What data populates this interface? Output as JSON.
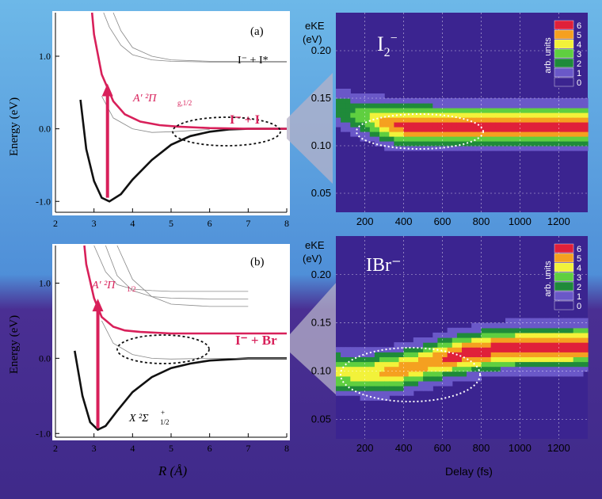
{
  "colors": {
    "background_top": "#5aa9e6",
    "background_bottom": "#3f2a8a",
    "panel_bg": "#ffffff",
    "curve_red": "#d8205a",
    "curve_black": "#111111",
    "heatmap_bg": "#3b2490",
    "scale": [
      "#3b2490",
      "#6a58c8",
      "#1f8a3a",
      "#5fcf40",
      "#f2f23a",
      "#f5a020",
      "#e0203a"
    ]
  },
  "chart_data": [
    {
      "id": "a",
      "type": "line",
      "panel_label": "(a)",
      "ylabel": "Energy (eV)",
      "xlabel": "",
      "xlim": [
        2,
        8
      ],
      "ylim": [
        -1.15,
        1.6
      ],
      "x_ticks": [
        "2",
        "3",
        "4",
        "5",
        "6",
        "7",
        "8"
      ],
      "y_ticks": [
        "-1.0",
        "0.0",
        "1.0"
      ],
      "annotations": [
        "I⁻ + I*",
        "A′ ²Π",
        "g,1/2",
        "I⁻ + I"
      ],
      "series": [
        {
          "role": "ground",
          "color": "#111111",
          "x": [
            2.65,
            2.8,
            3.0,
            3.2,
            3.4,
            3.7,
            4.0,
            4.5,
            5.0,
            5.5,
            6.0,
            6.5,
            7.0,
            7.5,
            8.0
          ],
          "y": [
            0.4,
            -0.28,
            -0.72,
            -0.95,
            -1.0,
            -0.9,
            -0.7,
            -0.43,
            -0.22,
            -0.1,
            -0.04,
            -0.01,
            0.0,
            0.0,
            0.0
          ]
        },
        {
          "role": "excited",
          "color": "#d8205a",
          "x": [
            2.95,
            3.0,
            3.2,
            3.5,
            3.8,
            4.2,
            4.7,
            5.2,
            6.0,
            7.0,
            8.0
          ],
          "y": [
            1.6,
            1.3,
            0.75,
            0.38,
            0.2,
            0.1,
            0.05,
            0.03,
            0.01,
            0.0,
            0.0
          ]
        },
        {
          "role": "upper",
          "color": "#888888",
          "x": [
            3.25,
            3.4,
            3.7,
            4.0,
            4.5,
            5.0,
            6.0,
            7.0,
            8.0
          ],
          "y": [
            1.6,
            1.4,
            1.15,
            1.02,
            0.95,
            0.93,
            0.92,
            0.92,
            0.92
          ]
        },
        {
          "role": "upper",
          "color": "#888888",
          "x": [
            3.5,
            3.7,
            4.0,
            4.5,
            5.0,
            6.0,
            7.0,
            8.0
          ],
          "y": [
            1.6,
            1.35,
            1.12,
            1.0,
            0.95,
            0.93,
            0.93,
            0.93
          ]
        },
        {
          "role": "upper",
          "color": "#888888",
          "x": [
            3.2,
            3.5,
            4.0,
            4.5,
            5.0,
            6.0
          ],
          "y": [
            0.45,
            0.15,
            0.0,
            -0.05,
            -0.04,
            -0.01
          ]
        }
      ],
      "arrow": {
        "x": 3.35,
        "y_from": -0.95,
        "y_to": 0.58
      }
    },
    {
      "id": "b",
      "type": "line",
      "panel_label": "(b)",
      "ylabel": "Energy (eV)",
      "xlabel": "R (Å)",
      "xlim": [
        2,
        8
      ],
      "ylim": [
        -1.05,
        1.5
      ],
      "x_ticks": [
        "2",
        "3",
        "4",
        "5",
        "6",
        "7",
        "8"
      ],
      "y_ticks": [
        "-1.0",
        "0.0",
        "1.0"
      ],
      "annotations": [
        "A′ ²Π",
        "1/2",
        "I⁻ + Br",
        "X ²Σ",
        "1/2",
        "+"
      ],
      "series": [
        {
          "role": "ground",
          "color": "#111111",
          "x": [
            2.5,
            2.7,
            2.9,
            3.1,
            3.3,
            3.6,
            4.0,
            4.5,
            5.0,
            5.5,
            6.0,
            7.0,
            8.0
          ],
          "y": [
            0.1,
            -0.5,
            -0.85,
            -0.95,
            -0.9,
            -0.7,
            -0.45,
            -0.25,
            -0.13,
            -0.07,
            -0.03,
            0.0,
            0.0
          ]
        },
        {
          "role": "excited",
          "color": "#d8205a",
          "x": [
            2.75,
            2.8,
            3.0,
            3.2,
            3.5,
            3.8,
            4.2,
            5.0,
            6.0,
            7.0,
            8.0
          ],
          "y": [
            1.5,
            1.25,
            0.8,
            0.55,
            0.42,
            0.37,
            0.35,
            0.33,
            0.33,
            0.33,
            0.33
          ]
        },
        {
          "role": "upper",
          "color": "#888888",
          "x": [
            3.0,
            3.3,
            3.6,
            4.0,
            4.5,
            5.0,
            6.0,
            7.0
          ],
          "y": [
            1.5,
            1.15,
            0.98,
            0.92,
            0.9,
            0.89,
            0.89,
            0.89
          ]
        },
        {
          "role": "upper",
          "color": "#888888",
          "x": [
            3.3,
            3.6,
            4.0,
            4.5,
            5.0,
            6.0,
            7.0
          ],
          "y": [
            1.5,
            1.1,
            0.9,
            0.82,
            0.8,
            0.79,
            0.79
          ]
        },
        {
          "role": "upper",
          "color": "#888888",
          "x": [
            3.6,
            4.0,
            4.5,
            5.0,
            6.0,
            7.0
          ],
          "y": [
            1.5,
            1.05,
            0.82,
            0.72,
            0.69,
            0.69
          ]
        },
        {
          "role": "upper",
          "color": "#888888",
          "x": [
            3.2,
            3.5,
            4.0,
            4.5,
            5.0,
            6.0,
            7.0,
            8.0
          ],
          "y": [
            0.5,
            0.2,
            0.05,
            0.0,
            -0.01,
            0.0,
            0.0,
            0.0
          ]
        }
      ],
      "arrow": {
        "x": 3.1,
        "y_from": -0.93,
        "y_to": 0.75
      }
    },
    {
      "id": "c",
      "type": "heatmap",
      "panel_label": "I2⁻",
      "ylabel": "eKE (eV)",
      "xlabel": "",
      "xlim": [
        50,
        1350
      ],
      "ylim": [
        0.03,
        0.24
      ],
      "x_ticks": [
        "200",
        "400",
        "600",
        "800",
        "1000",
        "1200"
      ],
      "y_ticks": [
        "0.05",
        "0.10",
        "0.15",
        "0.20"
      ],
      "colorbar_label": "arb. units",
      "colorbar_ticks": [
        "0",
        "1",
        "2",
        "3",
        "4",
        "5",
        "6"
      ],
      "band": {
        "center_eke": [
          0.14,
          0.13,
          0.125,
          0.122,
          0.121,
          0.121,
          0.121
        ],
        "center_t": [
          50,
          200,
          300,
          400,
          600,
          900,
          1350
        ],
        "peak_intensity": [
          2,
          3,
          5,
          6,
          6,
          6,
          6
        ]
      }
    },
    {
      "id": "d",
      "type": "heatmap",
      "panel_label": "IBr⁻",
      "ylabel": "eKE (eV)",
      "xlabel": "Delay (fs)",
      "xlim": [
        50,
        1350
      ],
      "ylim": [
        0.03,
        0.24
      ],
      "x_ticks": [
        "200",
        "400",
        "600",
        "800",
        "1000",
        "1200"
      ],
      "y_ticks": [
        "0.05",
        "0.10",
        "0.15",
        "0.20"
      ],
      "colorbar_label": "arb. units",
      "colorbar_ticks": [
        "0",
        "1",
        "2",
        "3",
        "4",
        "5",
        "6"
      ],
      "band": {
        "center_eke": [
          0.1,
          0.098,
          0.1,
          0.108,
          0.118,
          0.124,
          0.126
        ],
        "center_t": [
          50,
          200,
          350,
          500,
          700,
          900,
          1350
        ],
        "peak_intensity": [
          4,
          4,
          5,
          5,
          6,
          6,
          6
        ]
      }
    }
  ]
}
